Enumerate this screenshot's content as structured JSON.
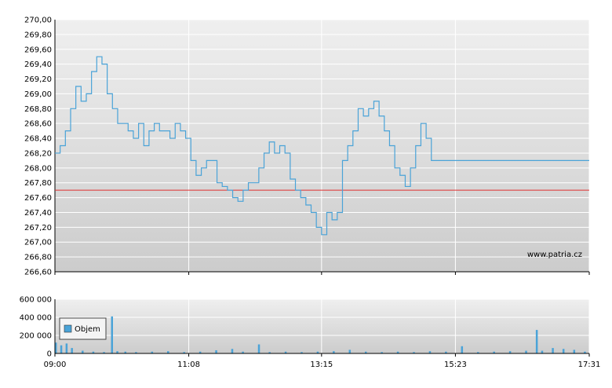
{
  "watermark": "www.patria.cz",
  "chart_data": [
    {
      "type": "line",
      "name": "price",
      "x_ticks": [
        "09:00",
        "11:08",
        "13:15",
        "15:23",
        "17:31"
      ],
      "ylim": [
        266.6,
        270.0
      ],
      "y_ticks": [
        "266,60",
        "266,80",
        "267,00",
        "267,20",
        "267,40",
        "267,60",
        "267,80",
        "268,00",
        "268,20",
        "268,40",
        "268,60",
        "268,80",
        "269,00",
        "269,20",
        "269,40",
        "269,60",
        "269,80",
        "270,00"
      ],
      "reference_line": 267.7,
      "grid": true,
      "colors": {
        "line": "#4aa3d8",
        "reference": "#e03030",
        "grid": "#ffffff",
        "bg_top": "#eeeeee",
        "bg_bottom": "#cfcfcf"
      },
      "series": [
        {
          "x": [
            "09:00",
            "09:05",
            "09:10",
            "09:15",
            "09:20",
            "09:25",
            "09:30",
            "09:35",
            "09:40",
            "09:45",
            "09:50",
            "09:55",
            "10:00",
            "10:05",
            "10:10",
            "10:15",
            "10:20",
            "10:25",
            "10:30",
            "10:35",
            "10:40",
            "10:45",
            "10:50",
            "10:55",
            "11:00",
            "11:05",
            "11:10",
            "11:15",
            "11:20",
            "11:25",
            "11:30",
            "11:35",
            "11:40",
            "11:45",
            "11:50",
            "11:55",
            "12:00",
            "12:05",
            "12:10",
            "12:15",
            "12:20",
            "12:25",
            "12:30",
            "12:35",
            "12:40",
            "12:45",
            "12:50",
            "12:55",
            "13:00",
            "13:05",
            "13:10",
            "13:15",
            "13:20",
            "13:25",
            "13:30",
            "13:35",
            "13:40",
            "13:45",
            "13:50",
            "13:55",
            "14:00",
            "14:05",
            "14:10",
            "14:15",
            "14:20",
            "14:25",
            "14:30",
            "14:35",
            "14:40",
            "14:45",
            "14:50",
            "14:55",
            "15:00",
            "15:05",
            "15:10",
            "15:15",
            "15:20",
            "15:25",
            "15:30",
            "15:35",
            "15:40",
            "15:45",
            "15:50",
            "15:55",
            "16:00",
            "16:05",
            "16:10",
            "16:15",
            "16:20",
            "16:25",
            "16:30",
            "16:35",
            "16:40",
            "16:45",
            "16:50",
            "16:55",
            "17:00",
            "17:05",
            "17:10",
            "17:15",
            "17:20",
            "17:25",
            "17:31"
          ],
          "y": [
            268.2,
            268.3,
            268.5,
            268.8,
            269.1,
            268.9,
            269.0,
            269.3,
            269.5,
            269.4,
            269.0,
            268.8,
            268.6,
            268.6,
            268.5,
            268.4,
            268.6,
            268.3,
            268.5,
            268.6,
            268.5,
            268.5,
            268.4,
            268.6,
            268.5,
            268.4,
            268.1,
            267.9,
            268.0,
            268.1,
            268.1,
            267.8,
            267.75,
            267.7,
            267.6,
            267.55,
            267.7,
            267.8,
            267.8,
            268.0,
            268.2,
            268.35,
            268.2,
            268.3,
            268.2,
            267.85,
            267.7,
            267.6,
            267.5,
            267.4,
            267.2,
            267.1,
            267.4,
            267.3,
            267.4,
            268.1,
            268.3,
            268.5,
            268.8,
            268.7,
            268.8,
            268.9,
            268.7,
            268.5,
            268.3,
            268.0,
            267.9,
            267.75,
            268.0,
            268.3,
            268.6,
            268.4,
            268.1,
            268.1,
            268.1,
            268.1,
            268.1,
            268.1,
            268.1,
            268.1,
            268.1,
            268.1,
            268.1,
            268.1,
            268.1,
            268.1,
            268.1,
            268.1,
            268.1,
            268.1,
            268.1,
            268.1,
            268.1,
            268.1,
            268.1,
            268.1,
            268.1,
            268.1,
            268.1,
            268.1,
            268.1,
            268.1,
            268.1
          ]
        }
      ]
    },
    {
      "type": "bar",
      "name": "volume",
      "legend": "Objem",
      "x_ticks": [
        "09:00",
        "11:08",
        "13:15",
        "15:23",
        "17:31"
      ],
      "ylim": [
        0,
        600000
      ],
      "y_ticks": [
        "0",
        "200 000",
        "400 000",
        "600 000"
      ],
      "grid": true,
      "colors": {
        "bar": "#4aa3d8"
      },
      "series": [
        {
          "x_fraction": [
            0.0,
            0.01,
            0.02,
            0.03,
            0.05,
            0.07,
            0.09,
            0.105,
            0.115,
            0.13,
            0.15,
            0.18,
            0.21,
            0.24,
            0.27,
            0.3,
            0.33,
            0.35,
            0.38,
            0.4,
            0.43,
            0.46,
            0.49,
            0.52,
            0.55,
            0.58,
            0.61,
            0.64,
            0.67,
            0.7,
            0.73,
            0.76,
            0.79,
            0.82,
            0.85,
            0.88,
            0.9,
            0.91,
            0.93,
            0.95,
            0.97,
            0.99
          ],
          "values": [
            120000,
            90000,
            110000,
            60000,
            30000,
            20000,
            15000,
            410000,
            25000,
            20000,
            15000,
            20000,
            25000,
            15000,
            20000,
            35000,
            50000,
            20000,
            100000,
            15000,
            20000,
            15000,
            20000,
            25000,
            40000,
            20000,
            15000,
            20000,
            15000,
            25000,
            20000,
            80000,
            15000,
            20000,
            25000,
            30000,
            260000,
            30000,
            60000,
            50000,
            40000,
            20000
          ]
        }
      ]
    }
  ]
}
